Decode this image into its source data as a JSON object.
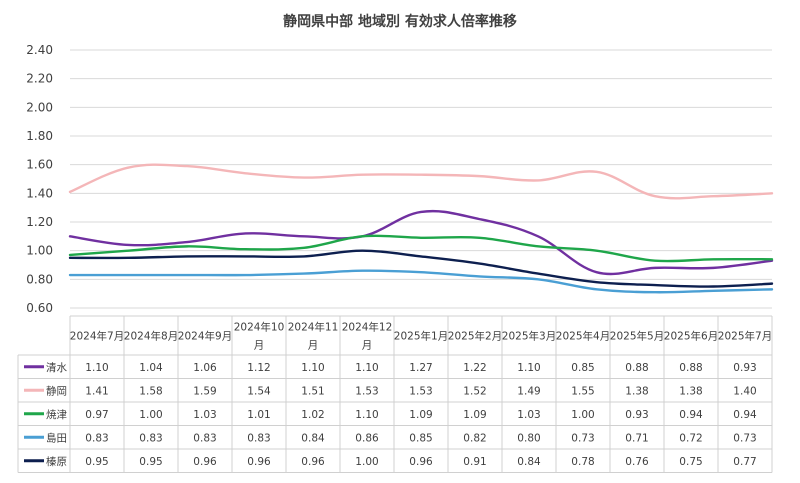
{
  "chart_data": {
    "type": "line",
    "title": "静岡県中部 地域別 有効求人倍率推移",
    "categories": [
      [
        "2024年7月"
      ],
      [
        "2024年8月"
      ],
      [
        "2024年9月"
      ],
      [
        "2024年10",
        "月"
      ],
      [
        "2024年11",
        "月"
      ],
      [
        "2024年12",
        "月"
      ],
      [
        "2025年1月"
      ],
      [
        "2025年2月"
      ],
      [
        "2025年3月"
      ],
      [
        "2025年4月"
      ],
      [
        "2025年5月"
      ],
      [
        "2025年6月"
      ],
      [
        "2025年7月"
      ]
    ],
    "ylim": [
      0.6,
      2.4
    ],
    "yticks": [
      "0.60",
      "0.80",
      "1.00",
      "1.20",
      "1.40",
      "1.60",
      "1.80",
      "2.00",
      "2.20",
      "2.40"
    ],
    "ytick_values": [
      0.6,
      0.8,
      1.0,
      1.2,
      1.4,
      1.6,
      1.8,
      2.0,
      2.2,
      2.4
    ],
    "grid": true,
    "legend": "data-table",
    "series": [
      {
        "name": "清水",
        "color": "#7030a0",
        "values": [
          1.1,
          1.04,
          1.06,
          1.12,
          1.1,
          1.1,
          1.27,
          1.22,
          1.1,
          0.85,
          0.88,
          0.88,
          0.93
        ],
        "labels": [
          "1.10",
          "1.04",
          "1.06",
          "1.12",
          "1.10",
          "1.10",
          "1.27",
          "1.22",
          "1.10",
          "0.85",
          "0.88",
          "0.88",
          "0.93"
        ]
      },
      {
        "name": "静岡",
        "color": "#f4b6b8",
        "values": [
          1.41,
          1.58,
          1.59,
          1.54,
          1.51,
          1.53,
          1.53,
          1.52,
          1.49,
          1.55,
          1.38,
          1.38,
          1.4
        ],
        "labels": [
          "1.41",
          "1.58",
          "1.59",
          "1.54",
          "1.51",
          "1.53",
          "1.53",
          "1.52",
          "1.49",
          "1.55",
          "1.38",
          "1.38",
          "1.40"
        ]
      },
      {
        "name": "焼津",
        "color": "#1fa64a",
        "values": [
          0.97,
          1.0,
          1.03,
          1.01,
          1.02,
          1.1,
          1.09,
          1.09,
          1.03,
          1.0,
          0.93,
          0.94,
          0.94
        ],
        "labels": [
          "0.97",
          "1.00",
          "1.03",
          "1.01",
          "1.02",
          "1.10",
          "1.09",
          "1.09",
          "1.03",
          "1.00",
          "0.93",
          "0.94",
          "0.94"
        ]
      },
      {
        "name": "島田",
        "color": "#4a9fd4",
        "values": [
          0.83,
          0.83,
          0.83,
          0.83,
          0.84,
          0.86,
          0.85,
          0.82,
          0.8,
          0.73,
          0.71,
          0.72,
          0.73
        ],
        "labels": [
          "0.83",
          "0.83",
          "0.83",
          "0.83",
          "0.84",
          "0.86",
          "0.85",
          "0.82",
          "0.80",
          "0.73",
          "0.71",
          "0.72",
          "0.73"
        ]
      },
      {
        "name": "榛原",
        "color": "#0d1f4f",
        "values": [
          0.95,
          0.95,
          0.96,
          0.96,
          0.96,
          1.0,
          0.96,
          0.91,
          0.84,
          0.78,
          0.76,
          0.75,
          0.77
        ],
        "labels": [
          "0.95",
          "0.95",
          "0.96",
          "0.96",
          "0.96",
          "1.00",
          "0.96",
          "0.91",
          "0.84",
          "0.78",
          "0.76",
          "0.75",
          "0.77"
        ]
      }
    ]
  }
}
